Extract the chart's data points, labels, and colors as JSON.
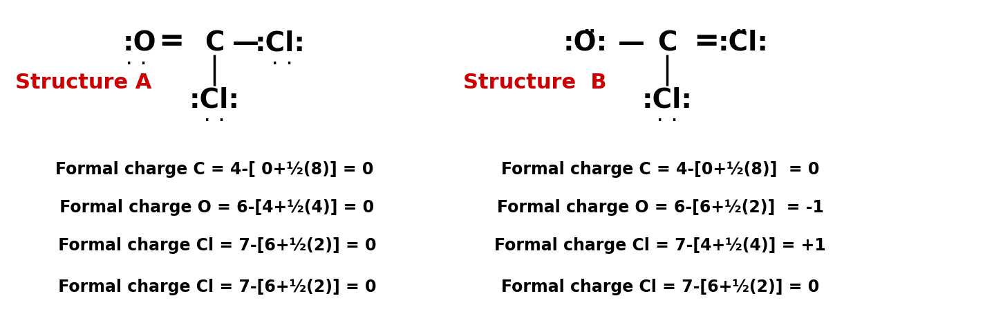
{
  "bg_color": "#ffffff",
  "fig_width": 14.51,
  "fig_height": 4.81,
  "dpi": 100,
  "structure_A_label": "Structure A",
  "structure_B_label": "Structure  B",
  "label_color": "#cc0000",
  "text_color": "#000000",
  "A_formal_charges": [
    "Formal charge C = 4-[ 0+½(8)] = 0",
    " Formal charge O = 6-[4+½(4)] = 0",
    " Formal charge Cl = 7-[6+½(2)] = 0",
    " Formal charge Cl = 7-[6+½(2)] = 0"
  ],
  "B_formal_charges": [
    "Formal charge C = 4-[0+½(8)]  = 0",
    "Formal charge O = 6-[6+½(2)]  = -1",
    "Formal charge Cl = 7-[4+½(4)] = +1",
    "Formal charge Cl = 7-[6+½(2)] = 0"
  ]
}
